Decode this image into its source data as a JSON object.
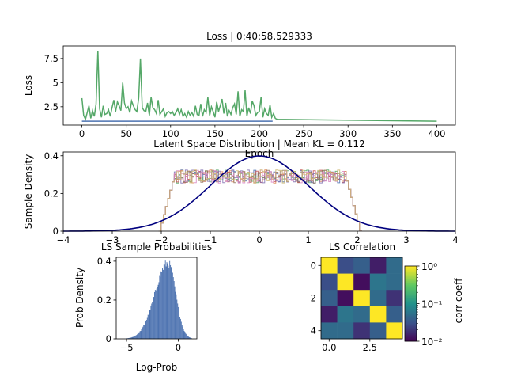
{
  "figure": {
    "background": "#ffffff"
  },
  "chart_data": [
    {
      "id": "loss",
      "type": "line",
      "title": "Loss | 0:40:58.529333",
      "xlabel": "Epoch",
      "ylabel": "Loss",
      "xlim": [
        -21,
        421
      ],
      "ylim": [
        0.6,
        8.8
      ],
      "xticks": [
        0,
        50,
        100,
        150,
        200,
        250,
        300,
        350,
        400
      ],
      "yticks": [
        2.5,
        5.0,
        7.5
      ],
      "series": [
        {
          "color": "#55a868",
          "x": [
            0,
            2,
            4,
            6,
            8,
            10,
            12,
            14,
            16,
            18,
            20,
            22,
            24,
            26,
            28,
            30,
            32,
            34,
            36,
            38,
            40,
            42,
            44,
            46,
            48,
            50,
            52,
            54,
            56,
            58,
            60,
            62,
            64,
            66,
            68,
            70,
            72,
            74,
            76,
            78,
            80,
            82,
            84,
            86,
            88,
            90,
            92,
            94,
            96,
            98,
            100,
            102,
            104,
            106,
            108,
            110,
            112,
            114,
            116,
            118,
            120,
            122,
            124,
            126,
            128,
            130,
            132,
            134,
            136,
            138,
            140,
            142,
            144,
            146,
            148,
            150,
            152,
            154,
            156,
            158,
            160,
            162,
            164,
            166,
            168,
            170,
            172,
            174,
            176,
            178,
            180,
            182,
            184,
            186,
            188,
            190,
            192,
            194,
            196,
            198,
            200,
            202,
            204,
            206,
            208,
            210,
            212,
            214,
            216,
            218,
            220,
            400
          ],
          "y": [
            3.4,
            1.6,
            1.2,
            1.9,
            2.6,
            1.3,
            2.1,
            1.5,
            2.8,
            8.3,
            2.3,
            1.4,
            2.6,
            1.7,
            1.8,
            2.2,
            1.5,
            2.4,
            3.2,
            2.0,
            3.0,
            2.6,
            2.1,
            5.0,
            2.9,
            2.3,
            2.5,
            1.9,
            3.1,
            2.6,
            2.2,
            2.0,
            3.4,
            7.5,
            2.4,
            2.1,
            2.0,
            2.9,
            1.6,
            3.5,
            2.4,
            2.2,
            1.8,
            3.2,
            1.7,
            2.0,
            2.3,
            1.5,
            1.9,
            2.0,
            1.8,
            2.0,
            1.6,
            1.9,
            2.3,
            1.7,
            2.2,
            1.5,
            1.8,
            1.4,
            2.0,
            1.6,
            1.9,
            1.5,
            2.6,
            1.7,
            1.6,
            2.8,
            1.5,
            2.2,
            1.9,
            3.5,
            1.6,
            2.5,
            2.0,
            1.4,
            3.0,
            2.0,
            2.6,
            3.3,
            1.8,
            2.9,
            1.5,
            2.1,
            1.7,
            2.4,
            2.8,
            1.7,
            4.1,
            1.5,
            2.2,
            2.0,
            4.2,
            1.5,
            2.4,
            1.8,
            3.1,
            2.6,
            1.6,
            1.9,
            2.0,
            3.5,
            1.4,
            2.3,
            1.8,
            1.6,
            2.7,
            1.4,
            1.8,
            1.3,
            1.2,
            1.0
          ]
        },
        {
          "color": "#4c72b0",
          "x": [
            0,
            215
          ],
          "y": [
            1.0,
            1.0
          ]
        }
      ]
    },
    {
      "id": "latent",
      "type": "line",
      "title": "Latent Space Distribution | Mean KL = 0.112",
      "xlabel": "",
      "ylabel": "Sample Density",
      "xlim": [
        -4,
        4
      ],
      "ylim": [
        0,
        0.42
      ],
      "xticks": [
        -4,
        -3,
        -2,
        -1,
        0,
        1,
        2,
        3,
        4
      ],
      "yticks": [
        0.0,
        0.2,
        0.4
      ],
      "histogram_colors": [
        "#4c72b0",
        "#dd8452",
        "#55a868",
        "#c44e52",
        "#8172b3",
        "#937860",
        "#da8bc3",
        "#ccb974"
      ],
      "histogram_level": 0.29,
      "histogram_range": [
        -1.75,
        1.75
      ],
      "reference_curve": {
        "name": "N(0,1)",
        "color": "#00007f",
        "mean": 0,
        "std": 1
      }
    },
    {
      "id": "ls-prob",
      "type": "bar",
      "title": "LS Sample Probabilities",
      "xlabel": "Log-Prob",
      "ylabel": "Prob Density",
      "xlim": [
        -6.0,
        1.8
      ],
      "ylim": [
        0,
        0.42
      ],
      "xticks": [
        -5,
        0
      ],
      "yticks": [
        0.0,
        0.2,
        0.4
      ],
      "color": "#4c72b0",
      "peak_x": -1.0,
      "peak_y": 0.39
    },
    {
      "id": "ls-corr",
      "type": "heatmap",
      "title": "LS Correlation",
      "xticks": [
        "0.0",
        "2.5"
      ],
      "yticks": [
        "0",
        "2",
        "4"
      ],
      "values": [
        [
          1.0,
          0.03,
          0.04,
          0.015,
          0.05
        ],
        [
          0.03,
          1.0,
          0.012,
          0.06,
          0.05
        ],
        [
          0.04,
          0.012,
          1.0,
          0.05,
          0.02
        ],
        [
          0.015,
          0.06,
          0.05,
          1.0,
          0.04
        ],
        [
          0.05,
          0.05,
          0.02,
          0.04,
          1.0
        ]
      ],
      "colorbar": {
        "label": "corr coeff",
        "scale": "log",
        "range": [
          0.01,
          1
        ],
        "ticks": [
          "10⁰",
          "10⁻¹",
          "10⁻²"
        ]
      }
    }
  ]
}
